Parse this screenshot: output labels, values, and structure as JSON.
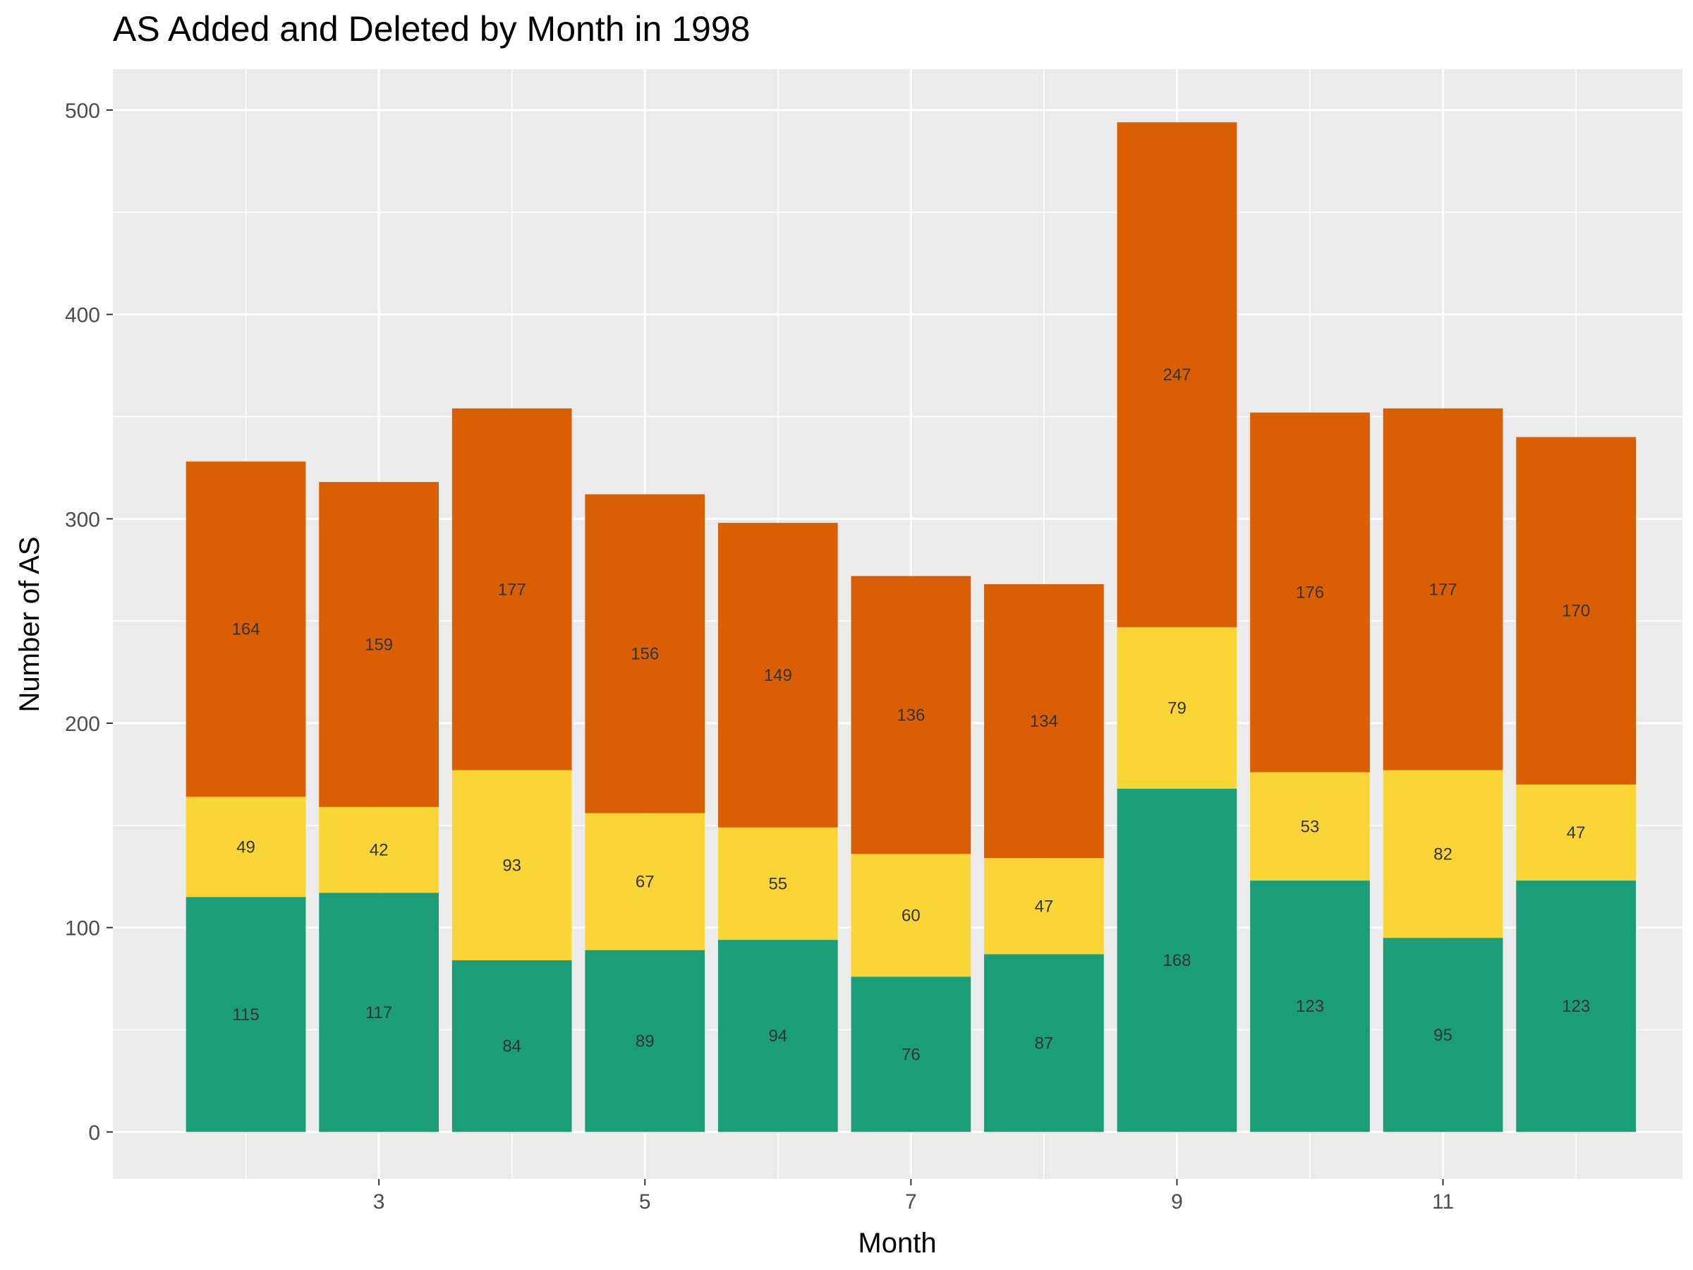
{
  "chart_data": {
    "type": "bar",
    "stacked": true,
    "title": "AS Added and Deleted by Month in 1998",
    "xlabel": "Month",
    "ylabel": "Number of AS",
    "categories": [
      2,
      3,
      4,
      5,
      6,
      7,
      8,
      9,
      10,
      11,
      12
    ],
    "x_ticks": [
      3,
      5,
      7,
      9,
      11
    ],
    "y_ticks": [
      0,
      100,
      200,
      300,
      400,
      500
    ],
    "xlim": [
      1.0,
      12.8
    ],
    "ylim": [
      -23,
      520
    ],
    "series": [
      {
        "color": "#1b9e77",
        "values": [
          115,
          117,
          84,
          89,
          94,
          76,
          87,
          168,
          123,
          95,
          123
        ]
      },
      {
        "color": "#fbd535",
        "values": [
          49,
          42,
          93,
          67,
          55,
          60,
          47,
          79,
          53,
          82,
          47
        ]
      },
      {
        "color": "#d95f02",
        "values": [
          164,
          159,
          177,
          156,
          149,
          136,
          134,
          247,
          176,
          177,
          170
        ]
      }
    ],
    "legend": "none",
    "grid": true,
    "panel_background": "#ebebeb",
    "grid_color": "#ffffff"
  }
}
